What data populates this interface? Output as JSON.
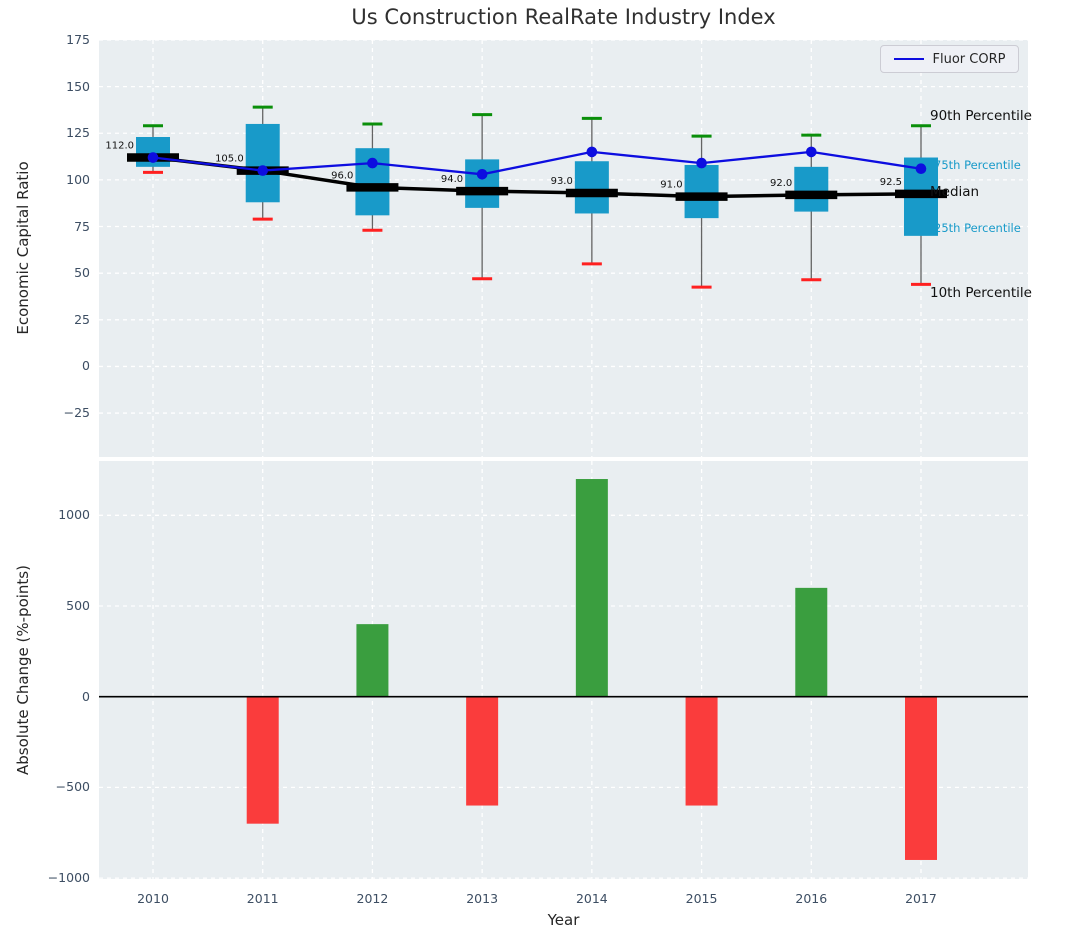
{
  "title": "Us Construction RealRate Industry Index",
  "legend": {
    "label": "Fluor CORP"
  },
  "colors": {
    "plot_bg": "#e9eef1",
    "grid": "#ffffff",
    "box": "#189ac9",
    "cap_90th": "#0a8f0a",
    "cap_10th": "#ff2020",
    "whisker": "#646464",
    "median_line": "#000000",
    "company_line": "#0d0de0",
    "bar_positive": "#3a9e3f",
    "bar_negative": "#fa3c3c",
    "zero_line": "#000000",
    "tick_text": "#3d4e63",
    "label_text": "#262626",
    "annotation_accent": "#189ac9",
    "annotation_black": "#111111"
  },
  "chart_data": [
    {
      "type": "boxplot+line",
      "title": "Us Construction RealRate Industry Index",
      "ylabel": "Economic Capital Ratio",
      "yticks": [
        175,
        150,
        125,
        100,
        75,
        50,
        25,
        0,
        -25
      ],
      "ylim": [
        -48.6,
        175
      ],
      "grid": true,
      "categories": [
        "2010",
        "2011",
        "2012",
        "2013",
        "2014",
        "2015",
        "2016",
        "2017"
      ],
      "p10": [
        104,
        79,
        73,
        47,
        55,
        42.5,
        46.5,
        44
      ],
      "p25": [
        107,
        88,
        81,
        85,
        82,
        79.5,
        83,
        70
      ],
      "median": [
        112,
        105,
        96,
        94,
        93,
        91,
        92,
        92.5
      ],
      "p75": [
        123,
        130,
        117,
        111,
        110,
        108,
        107,
        112
      ],
      "p90": [
        129,
        139,
        130,
        135,
        133,
        123.5,
        124,
        129
      ],
      "median_labels": [
        "112.0",
        "105.0",
        "96.0",
        "94.0",
        "93.0",
        "91.0",
        "92.0",
        "92.5"
      ],
      "series": [
        {
          "name": "Fluor CORP",
          "values": [
            112,
            105,
            109,
            103,
            115,
            109,
            115,
            106
          ]
        }
      ],
      "legend_position": "upper right",
      "right_annotations": [
        {
          "label": "90th Percentile",
          "size": "large",
          "color": "black"
        },
        {
          "label": "75th Percentile",
          "size": "small",
          "color": "accent"
        },
        {
          "label": "Median",
          "size": "large",
          "color": "black"
        },
        {
          "label": "25th Percentile",
          "size": "small",
          "color": "accent"
        },
        {
          "label": "10th Percentile",
          "size": "large",
          "color": "black"
        }
      ]
    },
    {
      "type": "bar",
      "xlabel": "Year",
      "ylabel": "Absolute Change (%-points)",
      "yticks": [
        1000,
        500,
        0,
        -500,
        -1000
      ],
      "ylim": [
        -1005,
        1299
      ],
      "grid": true,
      "categories": [
        "2010",
        "2011",
        "2012",
        "2013",
        "2014",
        "2015",
        "2016",
        "2017"
      ],
      "values": [
        null,
        -700,
        400,
        -600,
        1200,
        -600,
        600,
        -900
      ]
    }
  ]
}
